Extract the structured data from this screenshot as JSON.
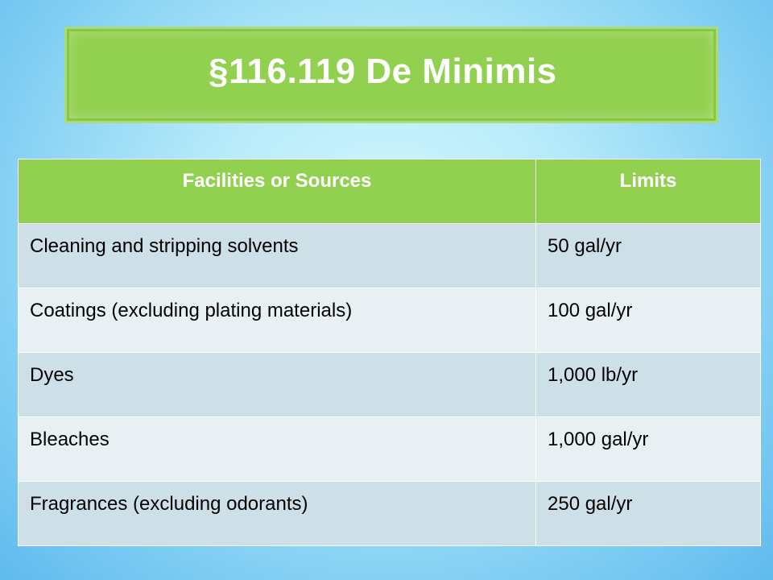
{
  "title": "§116.119 De Minimis",
  "table": {
    "headers": [
      "Facilities or Sources",
      "Limits"
    ],
    "rows": [
      [
        "Cleaning and stripping solvents",
        "50 gal/yr"
      ],
      [
        "Coatings (excluding plating materials)",
        "100 gal/yr"
      ],
      [
        "Dyes",
        "1,000 lb/yr"
      ],
      [
        "Bleaches",
        "1,000 gal/yr"
      ],
      [
        "Fragrances (excluding odorants)",
        "250 gal/yr"
      ]
    ]
  },
  "colors": {
    "header_green": "#92d050",
    "row_dark": "#cde0e8",
    "row_light": "#e8f0f4",
    "background": "#b6eafa"
  }
}
